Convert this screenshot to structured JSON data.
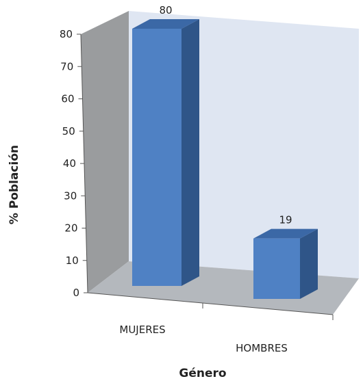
{
  "chart_data": {
    "type": "bar",
    "title": "",
    "xlabel": "Género",
    "ylabel": "% Población",
    "ylim": [
      0,
      80
    ],
    "yticks": [
      0,
      10,
      20,
      30,
      40,
      50,
      60,
      70,
      80
    ],
    "categories": [
      "MUJERES",
      "HOMBRES"
    ],
    "values": [
      80,
      19
    ],
    "data_labels": [
      "80",
      "19"
    ],
    "grid": false,
    "legend": "none",
    "colors": {
      "bar_front": "#4f81c4",
      "bar_side": "#2f5588",
      "bar_top": "#3b68a6",
      "back_wall": "#dfe6f2",
      "side_wall": "#9a9c9e",
      "floor": "#b4b8bd"
    }
  }
}
